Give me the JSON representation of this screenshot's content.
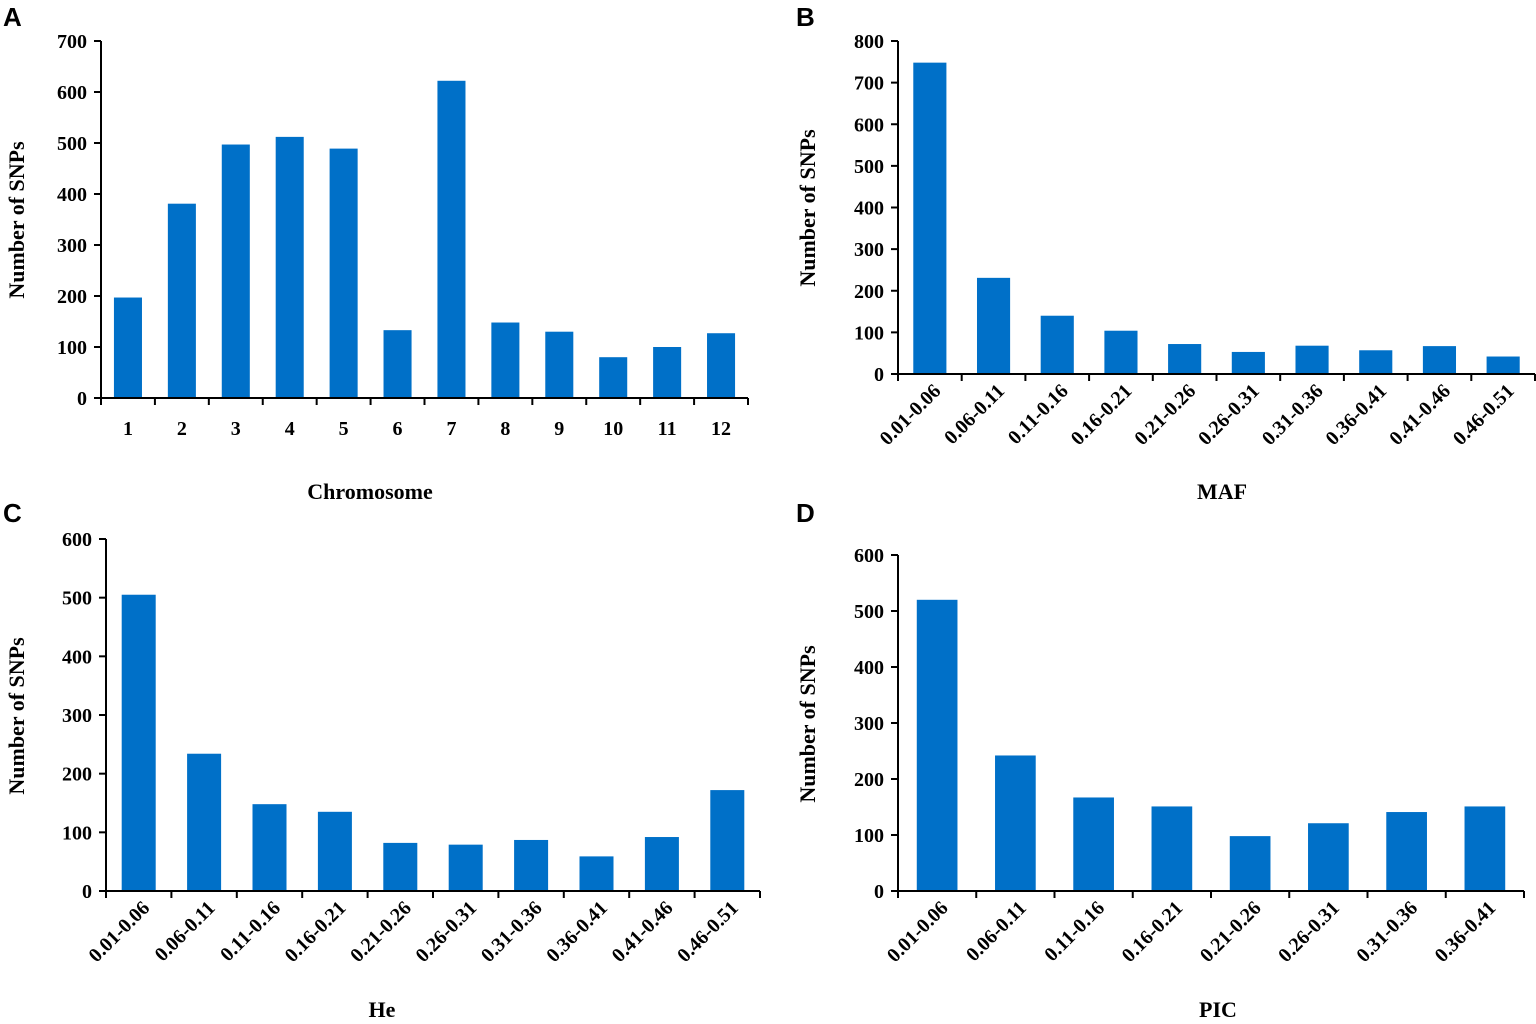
{
  "colors": {
    "bar": "#0070C8",
    "axis": "#000000",
    "text": "#000000"
  },
  "chart_data": [
    {
      "panel": "A",
      "type": "bar",
      "title": "",
      "xlabel": "Chromosome",
      "ylabel": "Number of SNPs",
      "ylim": [
        0,
        700
      ],
      "yticks": [
        0,
        100,
        200,
        300,
        400,
        500,
        600,
        700
      ],
      "grid": false,
      "categories": [
        "1",
        "2",
        "3",
        "4",
        "5",
        "6",
        "7",
        "8",
        "9",
        "10",
        "11",
        "12"
      ],
      "values": [
        197,
        381,
        497,
        512,
        489,
        133,
        622,
        148,
        130,
        80,
        100,
        127
      ]
    },
    {
      "panel": "B",
      "type": "bar",
      "title": "",
      "xlabel": "MAF",
      "ylabel": "Number of SNPs",
      "ylim": [
        0,
        800
      ],
      "yticks": [
        0,
        100,
        200,
        300,
        400,
        500,
        600,
        700,
        800
      ],
      "grid": false,
      "categories": [
        "0.01-0.06",
        "0.06-0.11",
        "0.11-0.16",
        "0.16-0.21",
        "0.21-0.26",
        "0.26-0.31",
        "0.31-0.36",
        "0.36-0.41",
        "0.41-0.46",
        "0.46-0.51"
      ],
      "values": [
        748,
        231,
        140,
        104,
        72,
        53,
        68,
        57,
        67,
        42
      ]
    },
    {
      "panel": "C",
      "type": "bar",
      "title": "",
      "xlabel": "He",
      "ylabel": "Number of SNPs",
      "ylim": [
        0,
        600
      ],
      "yticks": [
        0,
        100,
        200,
        300,
        400,
        500,
        600
      ],
      "grid": false,
      "categories": [
        "0.01-0.06",
        "0.06-0.11",
        "0.11-0.16",
        "0.16-0.21",
        "0.21-0.26",
        "0.26-0.31",
        "0.31-0.36",
        "0.36-0.41",
        "0.41-0.46",
        "0.46-0.51"
      ],
      "values": [
        505,
        234,
        148,
        135,
        82,
        79,
        87,
        59,
        92,
        172
      ]
    },
    {
      "panel": "D",
      "type": "bar",
      "title": "",
      "xlabel": "PIC",
      "ylabel": "Number of SNPs",
      "ylim": [
        0,
        600
      ],
      "yticks": [
        0,
        100,
        200,
        300,
        400,
        500,
        600
      ],
      "grid": false,
      "categories": [
        "0.01-0.06",
        "0.06-0.11",
        "0.11-0.16",
        "0.16-0.21",
        "0.21-0.26",
        "0.26-0.31",
        "0.31-0.36",
        "0.36-0.41"
      ],
      "values": [
        520,
        242,
        167,
        151,
        98,
        121,
        141,
        151
      ]
    }
  ]
}
